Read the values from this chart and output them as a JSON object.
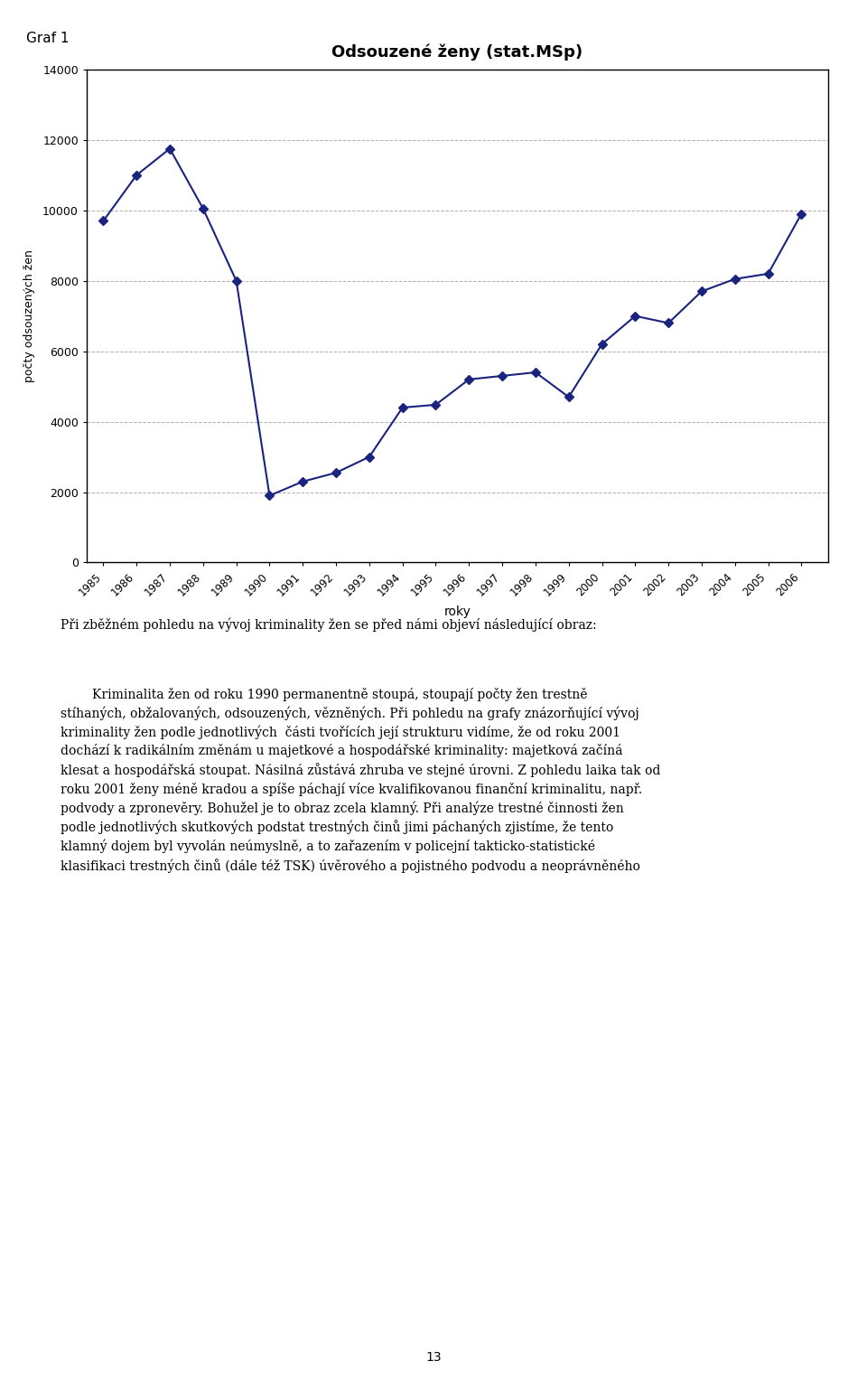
{
  "title": "Odsouzené ženy (stat.MSp)",
  "xlabel": "roky",
  "ylabel": "počty odsouzených žen",
  "years": [
    1985,
    1986,
    1987,
    1988,
    1989,
    1990,
    1991,
    1992,
    1993,
    1994,
    1995,
    1996,
    1997,
    1998,
    1999,
    2000,
    2001,
    2002,
    2003,
    2004,
    2005,
    2006
  ],
  "values": [
    9700,
    11000,
    11750,
    10050,
    8000,
    1900,
    2300,
    2550,
    3000,
    4400,
    4480,
    5200,
    5300,
    5400,
    4700,
    6200,
    7000,
    6800,
    7700,
    8050,
    8200,
    9900
  ],
  "line_color": "#1a237e",
  "marker_color": "#1a237e",
  "background_color": "#ffffff",
  "plot_bg_color": "#ffffff",
  "grid_color": "#b0b0b0",
  "ylim": [
    0,
    14000
  ],
  "yticks": [
    0,
    2000,
    4000,
    6000,
    8000,
    10000,
    12000,
    14000
  ],
  "page_number": "13",
  "graf_label": "Graf 1",
  "para1": "Při zběžném pohledu na vývoj kriminality žen se před námi objeví následující obraz:",
  "para2_line1": "Kriminalita žen od roku 1990 permanentně stoupá, stoupají počty žen trestně",
  "para2_line2": "stíhaných, obžalovaných, odsouzených, vězněných. Při pohledu na grafy znázorňující vývoj",
  "para2_line3": "kriminality žen podle jednotlivých  části tvořících její strukturu vidíme, že od roku 2001",
  "para2_line4": "dochází k radikálním změnám u majetkové a hospodářské kriminality: majetková začíná",
  "para2_line5": "klesat a hospodářská stoupat. Násilná zůstává zhruba ve stejné úrovni. Z pohledu laika tak od",
  "para2_line6": "roku 2001 ženy méně kradou a spíše páchají více kvalifikovanou finanční kriminalitu, např.",
  "para2_line7": "podvody a zpronevěry. Bohužel je to obraz zcela klamný. Při analýze trestné činnosti žen",
  "para2_line8": "podle jednotlivých skutkových podstat trestných činů jimi páchaných zjistíme, že tento",
  "para2_line9": "klamný dojem byl vyvolán neúmyslně, a to zařazením v policejní takticko-statistické",
  "para2_line10": "klasifikaci trestných činů (dále též TSK) úvěrového a pojistného podvodu a neoprávněného"
}
